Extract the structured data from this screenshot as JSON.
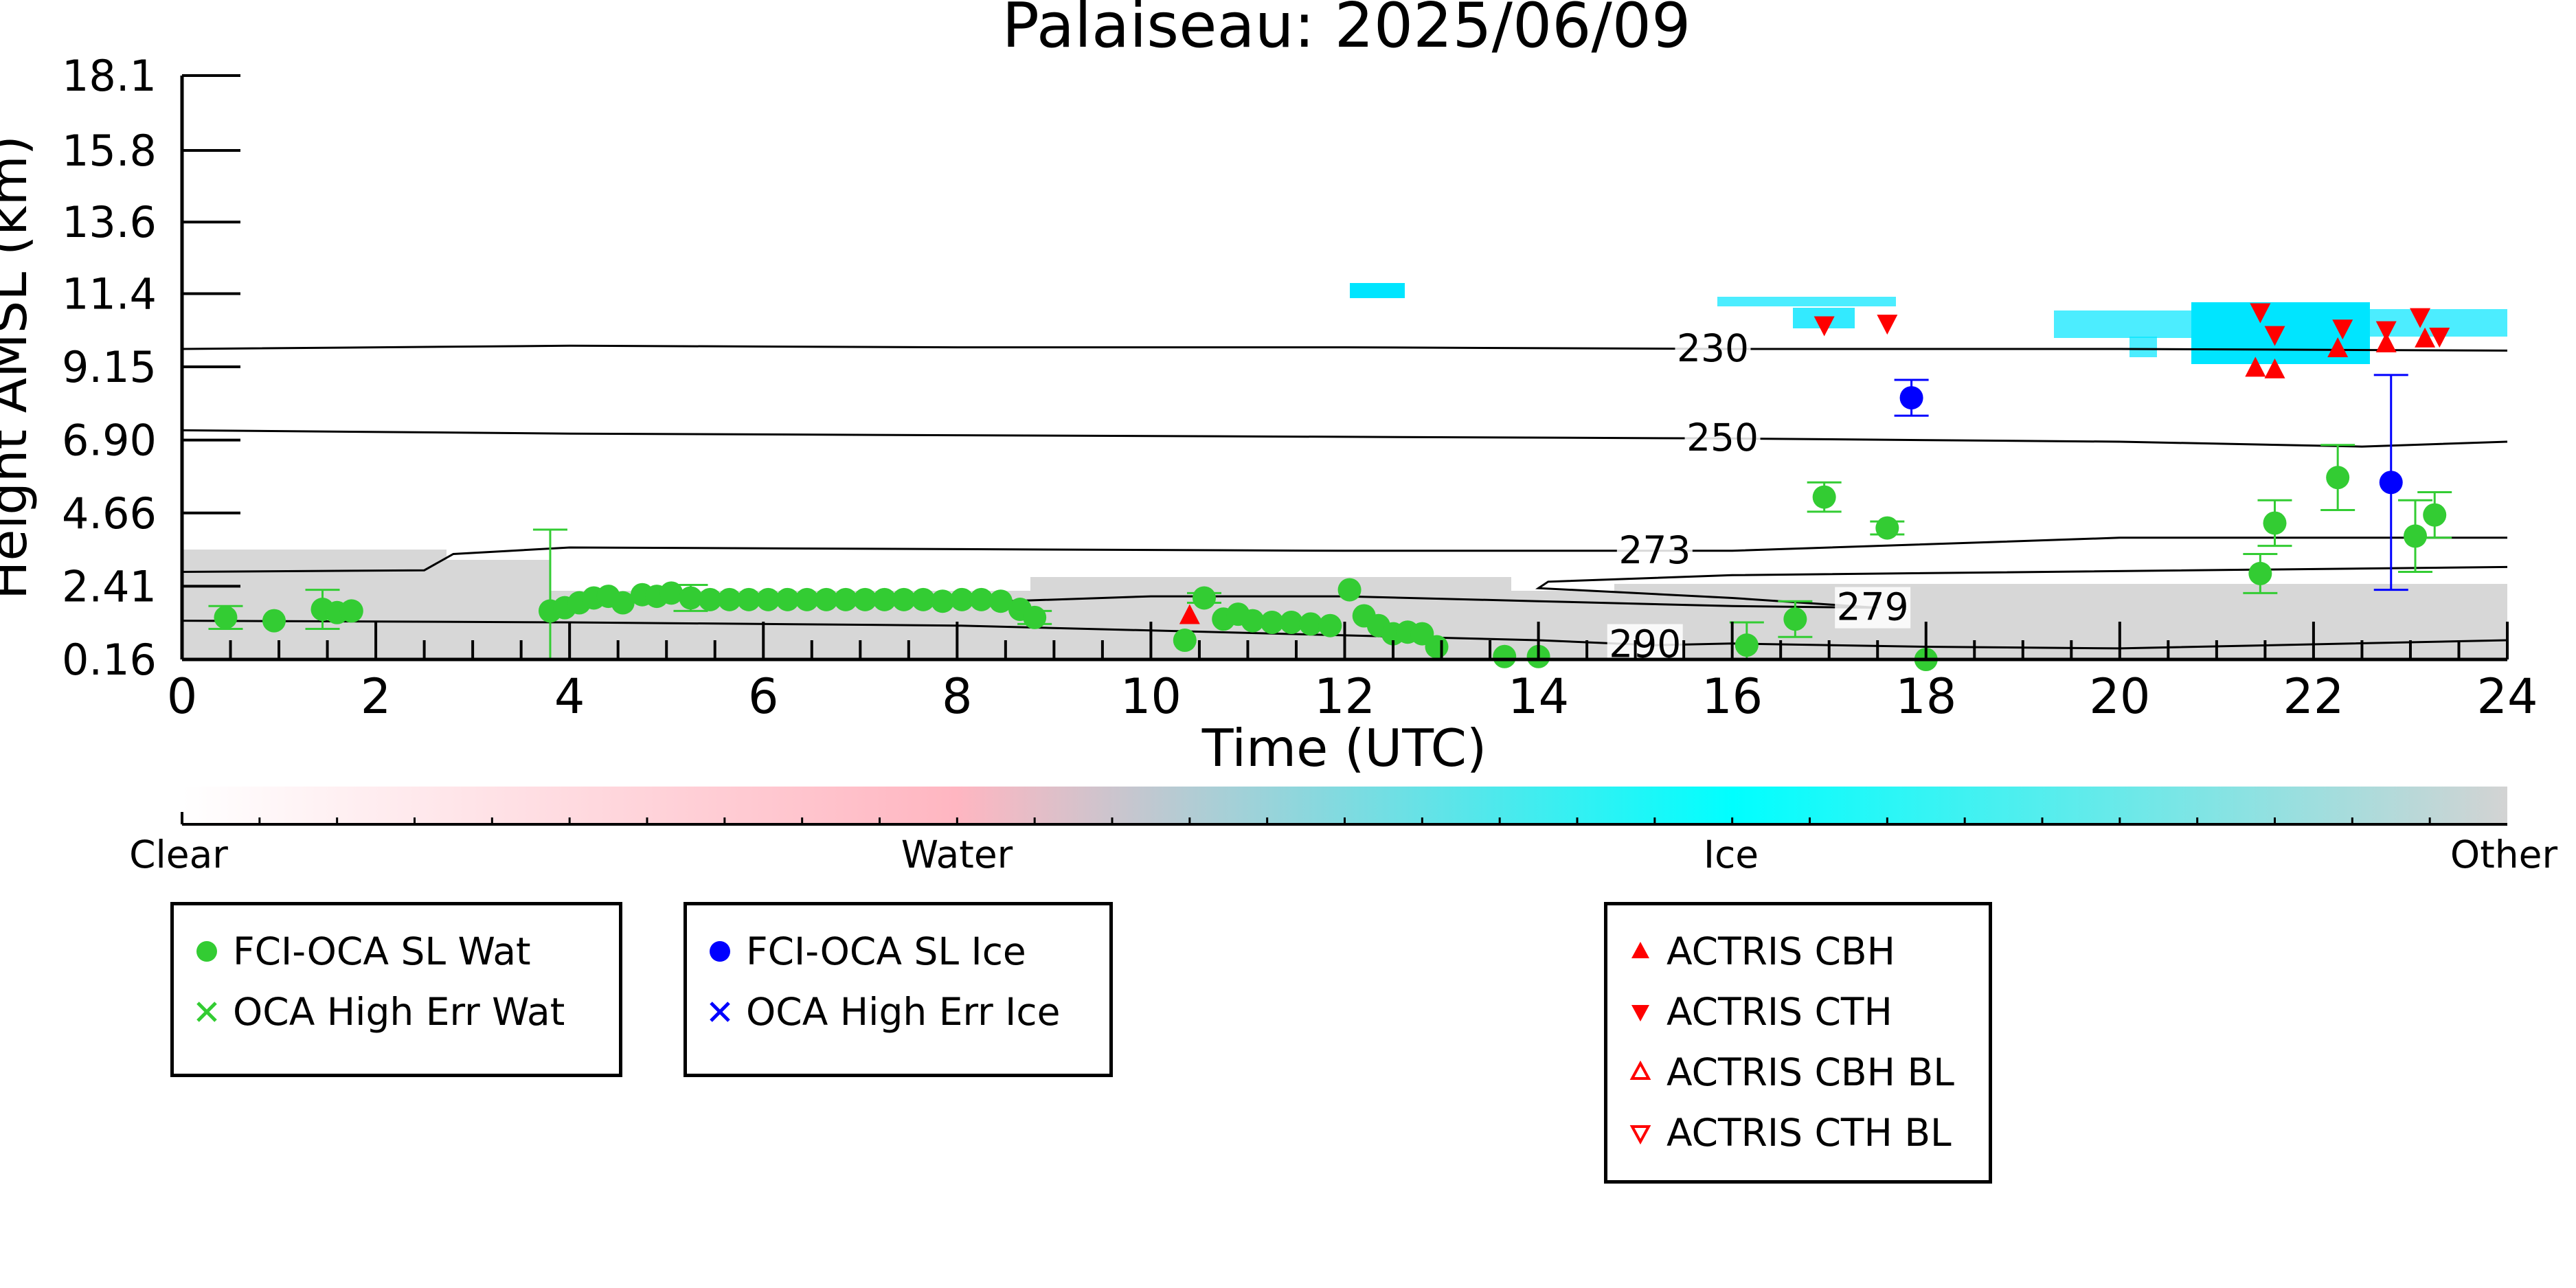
{
  "chart_data": {
    "type": "scatter",
    "title": "Palaiseau: 2025/06/09",
    "xlabel": "Time (UTC)",
    "ylabel": "Height AMSL (km)",
    "xlim": [
      0,
      24
    ],
    "ylim": [
      0.16,
      18.1
    ],
    "x_ticks": [
      "0",
      "2",
      "4",
      "6",
      "8",
      "10",
      "12",
      "14",
      "16",
      "18",
      "20",
      "22",
      "24"
    ],
    "y_ticks": [
      "0.16",
      "2.41",
      "4.66",
      "6.90",
      "9.15",
      "11.4",
      "13.6",
      "15.8",
      "18.1"
    ],
    "colorbar": {
      "labels": [
        "Clear",
        "Water",
        "Ice",
        "Other"
      ],
      "colors": [
        "#ffffff",
        "#ffb6c1",
        "#00ffff",
        "#d3d3d3"
      ]
    },
    "contours": [
      {
        "label": "230",
        "points": [
          [
            0,
            9.7
          ],
          [
            4,
            9.8
          ],
          [
            8,
            9.75
          ],
          [
            12,
            9.75
          ],
          [
            16,
            9.7
          ],
          [
            20,
            9.7
          ],
          [
            24,
            9.65
          ]
        ]
      },
      {
        "label": "250",
        "points": [
          [
            0,
            7.2
          ],
          [
            4,
            7.1
          ],
          [
            8,
            7.05
          ],
          [
            12,
            7.0
          ],
          [
            16,
            6.95
          ],
          [
            20,
            6.85
          ],
          [
            22.5,
            6.7
          ],
          [
            24,
            6.85
          ]
        ]
      },
      {
        "label": "273",
        "points": [
          [
            0,
            2.85
          ],
          [
            2.5,
            2.9
          ],
          [
            2.8,
            3.4
          ],
          [
            4,
            3.6
          ],
          [
            8,
            3.55
          ],
          [
            12,
            3.5
          ],
          [
            16,
            3.5
          ],
          [
            20,
            3.9
          ],
          [
            24,
            3.9
          ]
        ]
      },
      {
        "label": "279",
        "points": [
          [
            8,
            1.9
          ],
          [
            10,
            2.1
          ],
          [
            12,
            2.1
          ],
          [
            14,
            1.95
          ],
          [
            16,
            1.8
          ],
          [
            17.5,
            1.75
          ],
          [
            16,
            2.05
          ],
          [
            14,
            2.35
          ],
          [
            14.1,
            2.55
          ],
          [
            16,
            2.75
          ],
          [
            24,
            3.0
          ]
        ]
      },
      {
        "label": "290",
        "points": [
          [
            0,
            1.35
          ],
          [
            4,
            1.3
          ],
          [
            8,
            1.2
          ],
          [
            10,
            1.05
          ],
          [
            12,
            0.9
          ],
          [
            14,
            0.75
          ],
          [
            15.2,
            0.6
          ],
          [
            16,
            0.65
          ],
          [
            18,
            0.55
          ],
          [
            20,
            0.5
          ],
          [
            24,
            0.75
          ]
        ]
      }
    ],
    "series": [
      {
        "name": "FCI-OCA SL Wat",
        "color": "#33cc33",
        "marker": "circle",
        "x": [
          0.45,
          0.95,
          1.45,
          1.6,
          1.75,
          3.8,
          3.95,
          4.1,
          4.25,
          4.4,
          4.55,
          4.75,
          4.9,
          5.05,
          5.25,
          5.45,
          5.65,
          5.85,
          6.05,
          6.25,
          6.45,
          6.65,
          6.85,
          7.05,
          7.25,
          7.45,
          7.65,
          7.85,
          8.05,
          8.25,
          8.45,
          8.65,
          8.8,
          10.35,
          10.55,
          10.75,
          10.9,
          11.05,
          11.25,
          11.45,
          11.65,
          11.85,
          12.05,
          12.2,
          12.35,
          12.5,
          12.65,
          12.8,
          12.95,
          13.65,
          14.0,
          16.15,
          16.65,
          16.95,
          17.6,
          18.0,
          21.45,
          21.6,
          22.25,
          23.05,
          23.25
        ],
        "y": [
          1.45,
          1.35,
          1.7,
          1.6,
          1.65,
          1.65,
          1.75,
          1.9,
          2.05,
          2.1,
          1.9,
          2.15,
          2.1,
          2.2,
          2.05,
          2.0,
          2.0,
          2.0,
          2.0,
          2.0,
          2.0,
          2.0,
          2.0,
          2.0,
          2.0,
          2.0,
          2.0,
          1.95,
          2.0,
          2.0,
          1.95,
          1.7,
          1.45,
          0.75,
          2.05,
          1.4,
          1.55,
          1.35,
          1.3,
          1.3,
          1.25,
          1.2,
          2.3,
          1.5,
          1.2,
          0.95,
          1.0,
          0.95,
          0.55,
          0.25,
          0.25,
          0.6,
          1.4,
          5.15,
          4.2,
          0.16,
          2.8,
          4.35,
          5.75,
          3.95,
          4.6
        ]
      },
      {
        "name": "OCA High Err Wat",
        "color": "#33cc33",
        "marker": "x",
        "x": [],
        "y": []
      },
      {
        "name": "FCI-OCA SL Ice",
        "color": "#0000ff",
        "marker": "circle",
        "x": [
          17.85,
          22.8
        ],
        "y": [
          8.2,
          5.6
        ]
      },
      {
        "name": "OCA High Err Ice",
        "color": "#0000ff",
        "marker": "x",
        "x": [],
        "y": []
      },
      {
        "name": "ACTRIS CBH",
        "color": "#ff0000",
        "marker": "triangle-up",
        "x": [
          10.4,
          21.4,
          21.6,
          22.25,
          22.75,
          23.15
        ],
        "y": [
          1.5,
          9.1,
          9.05,
          9.7,
          9.85,
          10.0
        ]
      },
      {
        "name": "ACTRIS CTH",
        "color": "#ff0000",
        "marker": "triangle-down",
        "x": [
          16.95,
          17.6,
          21.45,
          21.6,
          22.3,
          22.75,
          23.1,
          23.3
        ],
        "y": [
          10.45,
          10.5,
          10.85,
          10.15,
          10.35,
          10.3,
          10.7,
          10.1
        ]
      },
      {
        "name": "ACTRIS CBH BL",
        "color": "#ff0000",
        "marker": "triangle-up-open",
        "x": [],
        "y": []
      },
      {
        "name": "ACTRIS CTH BL",
        "color": "#ff0000",
        "marker": "triangle-down-open",
        "x": [],
        "y": []
      }
    ],
    "legend_groups": [
      [
        "FCI-OCA SL Wat",
        "OCA High Err Wat"
      ],
      [
        "FCI-OCA SL Ice",
        "OCA High Err Ice"
      ],
      [
        "ACTRIS CBH",
        "ACTRIS CTH",
        "ACTRIS CBH BL",
        "ACTRIS CTH BL"
      ]
    ],
    "grid": false,
    "legend_placement": "bottom"
  }
}
